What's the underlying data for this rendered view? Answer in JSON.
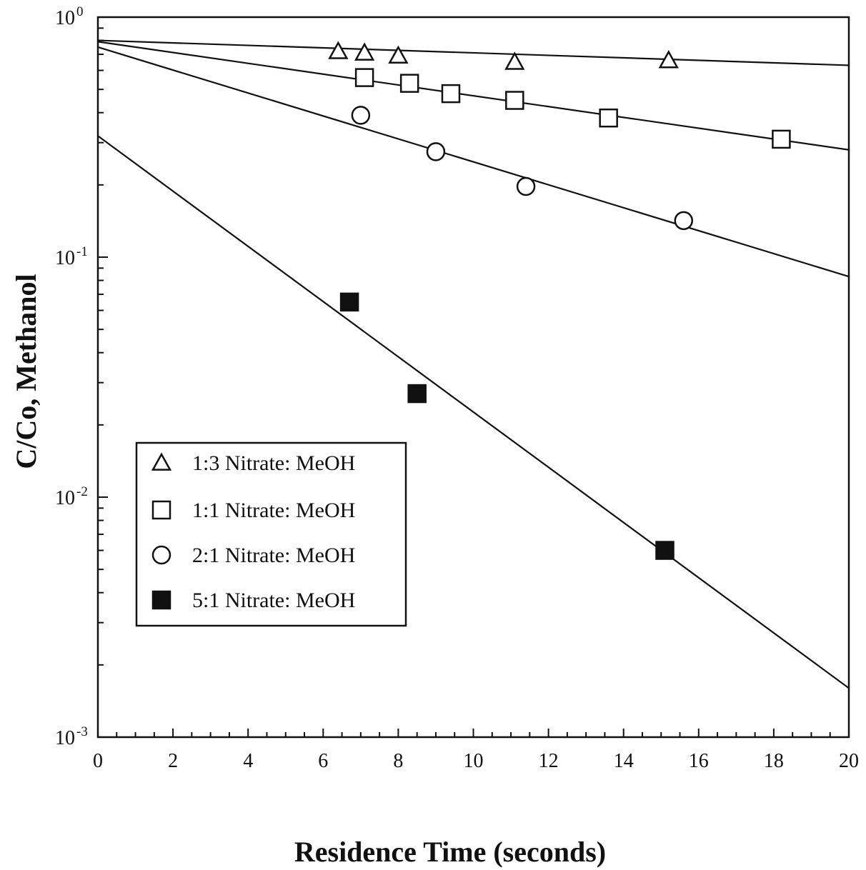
{
  "chart_data": {
    "type": "scatter",
    "xlabel": "Residence Time (seconds)",
    "ylabel": "C/Co, Methanol",
    "xlim": [
      0,
      20
    ],
    "ylim": [
      0.001,
      1
    ],
    "yscale": "log",
    "x_ticks": [
      0,
      2,
      4,
      6,
      8,
      10,
      12,
      14,
      16,
      18,
      20
    ],
    "y_ticks": [
      {
        "value": 1,
        "base": "10",
        "exp": "0"
      },
      {
        "value": 0.1,
        "base": "10",
        "exp": "-1"
      },
      {
        "value": 0.01,
        "base": "10",
        "exp": "-2"
      },
      {
        "value": 0.001,
        "base": "10",
        "exp": "-3"
      }
    ],
    "grid": false,
    "legend_position": "lower-left",
    "series": [
      {
        "name": "1:3 Nitrate: MeOH",
        "marker": "triangle-open",
        "points": [
          [
            6.4,
            0.72
          ],
          [
            7.1,
            0.71
          ],
          [
            8.0,
            0.69
          ],
          [
            11.1,
            0.65
          ],
          [
            15.2,
            0.66
          ]
        ],
        "fit": {
          "x": [
            0,
            20
          ],
          "y": [
            0.8,
            0.63
          ]
        }
      },
      {
        "name": "1:1 Nitrate: MeOH",
        "marker": "square-open",
        "points": [
          [
            7.1,
            0.56
          ],
          [
            8.3,
            0.53
          ],
          [
            9.4,
            0.48
          ],
          [
            11.1,
            0.45
          ],
          [
            13.6,
            0.38
          ],
          [
            18.2,
            0.31
          ]
        ],
        "fit": {
          "x": [
            0,
            20
          ],
          "y": [
            0.79,
            0.28
          ]
        }
      },
      {
        "name": "2:1 Nitrate: MeOH",
        "marker": "circle-open",
        "points": [
          [
            7.0,
            0.39
          ],
          [
            9.0,
            0.275
          ],
          [
            11.4,
            0.197
          ],
          [
            15.6,
            0.142
          ]
        ],
        "fit": {
          "x": [
            0,
            20
          ],
          "y": [
            0.75,
            0.083
          ]
        }
      },
      {
        "name": "5:1 Nitrate: MeOH",
        "marker": "square-filled",
        "points": [
          [
            6.7,
            0.065
          ],
          [
            8.5,
            0.027
          ],
          [
            15.1,
            0.006
          ]
        ],
        "fit": {
          "x": [
            0,
            20
          ],
          "y": [
            0.32,
            0.0016
          ]
        }
      }
    ]
  }
}
